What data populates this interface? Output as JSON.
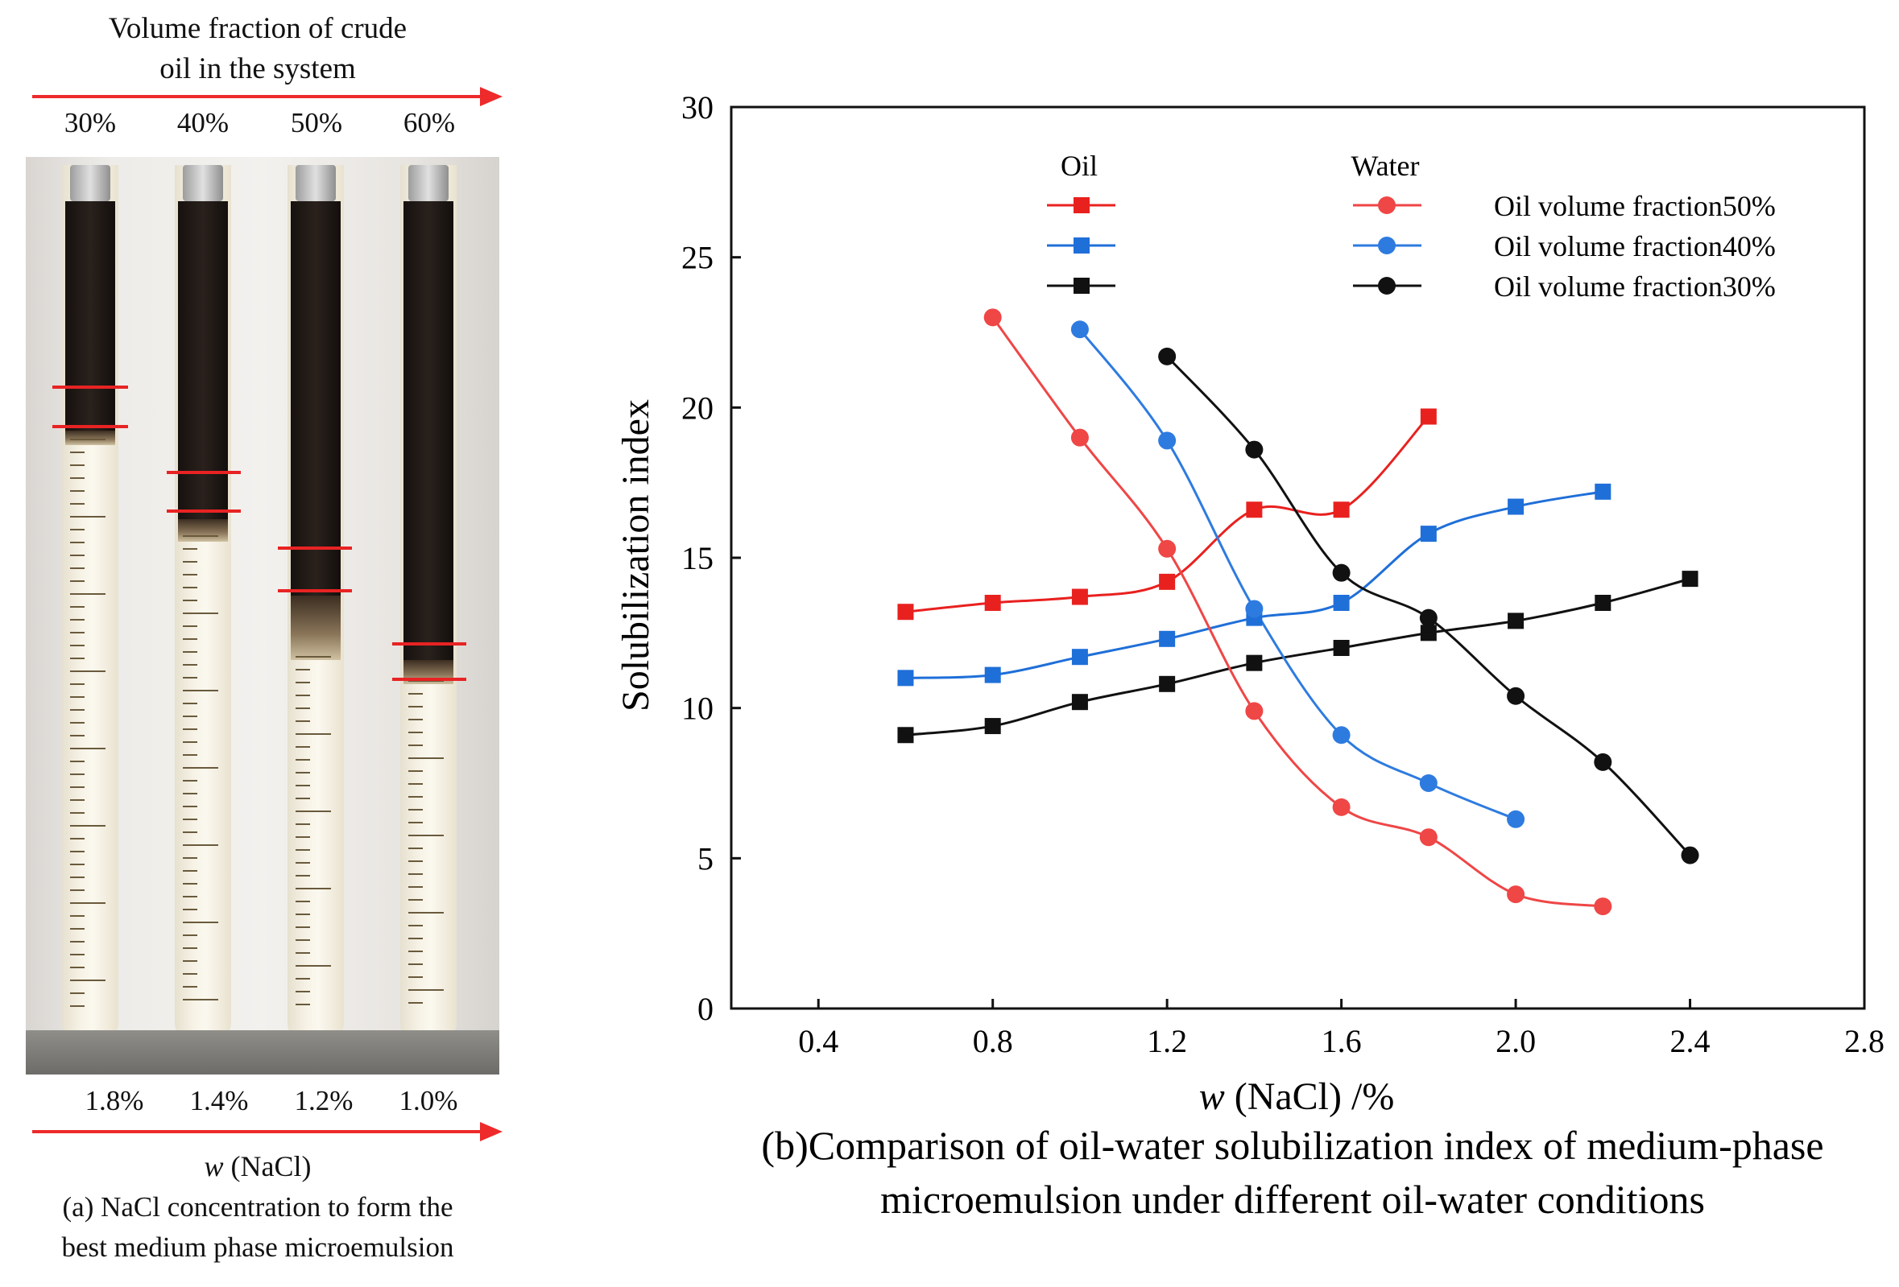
{
  "panel_a": {
    "header_line1": "Volume fraction of crude",
    "header_line2": "oil in the system",
    "top_labels": [
      "30%",
      "40%",
      "50%",
      "60%"
    ],
    "bottom_labels": [
      "1.8%",
      "1.4%",
      "1.2%",
      "1.0%"
    ],
    "axis_label_var": "w",
    "axis_label_rest": " (NaCl)",
    "caption_line1": "(a) NaCl concentration to form the",
    "caption_line2": "best medium phase microemulsion",
    "accent_color": "#ee2a2a"
  },
  "chart_data": {
    "type": "line",
    "ylabel": "Solubilization index",
    "xlabel_var": "w",
    "xlabel_rest": " (NaCl) /%",
    "xlim": [
      0.2,
      2.8
    ],
    "ylim": [
      0,
      30
    ],
    "xticks": [
      "0.4",
      "0.8",
      "1.2",
      "1.6",
      "2.0",
      "2.4",
      "2.8"
    ],
    "xtick_values": [
      0.4,
      0.8,
      1.2,
      1.6,
      2.0,
      2.4,
      2.8
    ],
    "yticks": [
      "0",
      "5",
      "10",
      "15",
      "20",
      "25",
      "30"
    ],
    "ytick_values": [
      0,
      5,
      10,
      15,
      20,
      25,
      30
    ],
    "legend": {
      "oil_header": "Oil",
      "water_header": "Water",
      "entries": [
        "Oil volume fraction50%",
        "Oil volume fraction40%",
        "Oil volume fraction30%"
      ]
    },
    "caption_line1": "(b)Comparison of oil-water solubilization index of medium-phase",
    "caption_line2": "microemulsion under different oil-water conditions",
    "series": [
      {
        "name": "Oil - Oil volume fraction50%",
        "marker": "square",
        "color": "#e8211f",
        "x": [
          0.6,
          0.8,
          1.0,
          1.2,
          1.4,
          1.6,
          1.8
        ],
        "y": [
          13.2,
          13.5,
          13.7,
          14.2,
          16.6,
          16.6,
          19.7
        ]
      },
      {
        "name": "Oil - Oil volume fraction40%",
        "marker": "square",
        "color": "#1f6fd8",
        "x": [
          0.6,
          0.8,
          1.0,
          1.2,
          1.4,
          1.6,
          1.8,
          2.0,
          2.2
        ],
        "y": [
          11.0,
          11.1,
          11.7,
          12.3,
          13.0,
          13.5,
          15.8,
          16.7,
          17.2
        ]
      },
      {
        "name": "Oil - Oil volume fraction30%",
        "marker": "square",
        "color": "#111111",
        "x": [
          0.6,
          0.8,
          1.0,
          1.2,
          1.4,
          1.6,
          1.8,
          2.0,
          2.2,
          2.4
        ],
        "y": [
          9.1,
          9.4,
          10.2,
          10.8,
          11.5,
          12.0,
          12.5,
          12.9,
          13.5,
          14.3
        ]
      },
      {
        "name": "Water - Oil volume fraction50%",
        "marker": "circle",
        "color": "#ef4646",
        "x": [
          0.8,
          1.0,
          1.2,
          1.4,
          1.6,
          1.8,
          2.0,
          2.2
        ],
        "y": [
          23.0,
          19.0,
          15.3,
          9.9,
          6.7,
          5.7,
          3.8,
          3.4
        ]
      },
      {
        "name": "Water - Oil volume fraction40%",
        "marker": "circle",
        "color": "#2e7be0",
        "x": [
          1.0,
          1.2,
          1.4,
          1.6,
          1.8,
          2.0
        ],
        "y": [
          22.6,
          18.9,
          13.3,
          9.1,
          7.5,
          6.3
        ]
      },
      {
        "name": "Water - Oil volume fraction30%",
        "marker": "circle",
        "color": "#111111",
        "x": [
          1.2,
          1.4,
          1.6,
          1.8,
          2.0,
          2.2,
          2.4
        ],
        "y": [
          21.7,
          18.6,
          14.5,
          13.0,
          10.4,
          8.2,
          5.1
        ]
      }
    ]
  }
}
